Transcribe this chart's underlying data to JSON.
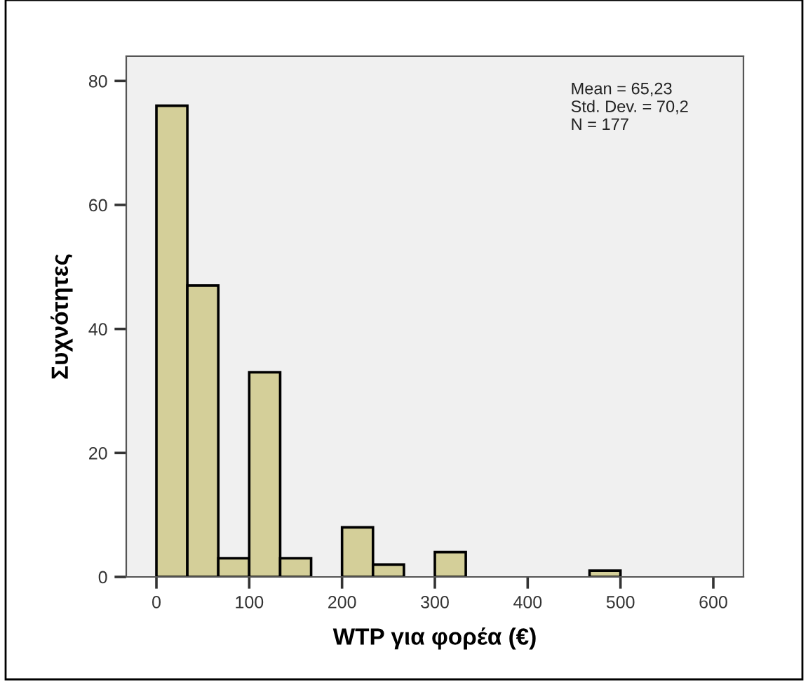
{
  "chart_data": {
    "type": "histogram",
    "xlabel": "WTP για φορέα (€)",
    "ylabel": "Συχνότητες",
    "bins": [
      0,
      33.33,
      66.67,
      100,
      133.33,
      166.67,
      200,
      233.33,
      266.67,
      300,
      333.33,
      366.67,
      400,
      433.33,
      466.67,
      500
    ],
    "values": [
      76,
      47,
      3,
      33,
      3,
      0,
      8,
      2,
      0,
      4,
      0,
      0,
      0,
      0,
      1
    ],
    "color": "#d4cf99",
    "xlim": [
      -32.5,
      632.5
    ],
    "xticks": [
      0,
      100,
      200,
      300,
      400,
      500,
      600
    ],
    "ylim": [
      0,
      84
    ],
    "yticks": [
      0,
      20,
      40,
      60,
      80
    ],
    "grid": false,
    "legend": false,
    "annotations": [
      "Mean = 65,23\nStd. Dev. = 70,2\nN = 177"
    ]
  }
}
